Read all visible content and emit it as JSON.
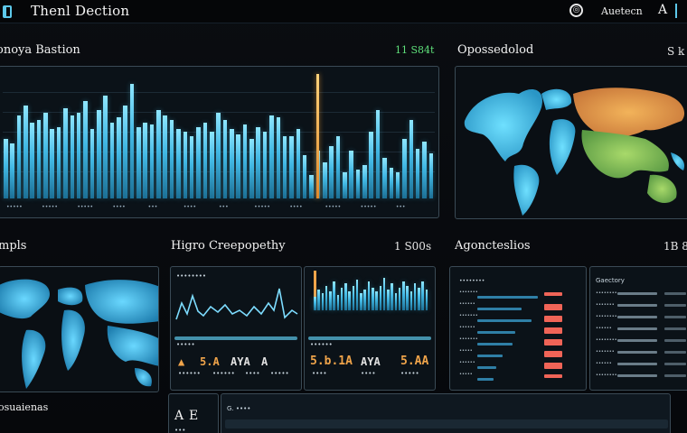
{
  "app": {
    "title": "Thenl Dection",
    "icon": "terminal-icon"
  },
  "topbar": {
    "user_label": "Auetecn",
    "lang_label": "A",
    "user_icon": "user-badge-icon"
  },
  "overview": {
    "title": "onoya Bastion",
    "value": "11 S84t",
    "value_color": "#5fe07a",
    "x_labels": [
      "•••••",
      "•••••",
      "•••••",
      "••••",
      "•••",
      "••••",
      "•••",
      "•••••",
      "••••",
      "•••••",
      "•••••",
      "•••"
    ],
    "chart_data": {
      "type": "bar",
      "values": [
        50,
        46,
        70,
        78,
        64,
        66,
        72,
        58,
        60,
        76,
        70,
        72,
        82,
        58,
        74,
        86,
        64,
        68,
        78,
        96,
        60,
        64,
        62,
        74,
        70,
        66,
        58,
        56,
        52,
        60,
        64,
        56,
        72,
        66,
        58,
        54,
        62,
        50,
        60,
        56,
        70,
        68,
        52,
        52,
        58,
        36,
        20,
        40,
        30,
        44,
        52,
        22,
        40,
        24,
        28,
        56,
        74,
        34,
        26,
        22,
        50,
        66,
        42,
        48,
        38
      ],
      "ylim": [
        0,
        100
      ],
      "grid": true,
      "marker_index": 47
    }
  },
  "geo_top": {
    "title": "Opossedolod",
    "value": "S k"
  },
  "maps_left": {
    "title": "mpls"
  },
  "hg": {
    "title": "Higro Creepopethy",
    "value": "1 S00s",
    "left_panel": {
      "header": "••••••••",
      "footer": "•••••",
      "kpis": [
        "▲",
        "",
        "5.A",
        "AYA",
        "A"
      ],
      "kpi_sub": [
        "••••••",
        "••••••",
        "••••",
        "•••••"
      ]
    },
    "right_panel": {
      "header": "",
      "footer": "••••••",
      "kpis": [
        "5.b.1A",
        "AYA",
        "5.AA"
      ],
      "kpi_sub": [
        "••••",
        "••••",
        "•••••"
      ]
    }
  },
  "agencies": {
    "title": "Agoncteslios",
    "value": "1B 8",
    "left_table": {
      "header": "••••••••",
      "rows": [
        "•••••••",
        "••••••",
        "•••••••",
        "••••••",
        "•••••••",
        "•••••",
        "••••••",
        "•••••"
      ],
      "bars": [
        0.95,
        0.7,
        0.85,
        0.6,
        0.55,
        0.4,
        0.3,
        0.25
      ]
    },
    "right_table": {
      "header": "Gaectory",
      "rows": [
        "••••••••",
        "•••••••",
        "••••••••",
        "••••••",
        "••••••••",
        "•••••••",
        "••••••",
        "••••••••"
      ]
    }
  },
  "bottom": {
    "title": "osuaienas",
    "cell_a": "A",
    "cell_b": "E",
    "sub_a": "•••",
    "panel_label": "G. ••••",
    "colors": {
      "accent": "#5dc8ea",
      "orange": "#f0a44a",
      "red": "#f06457",
      "green": "#5fe07a"
    }
  }
}
